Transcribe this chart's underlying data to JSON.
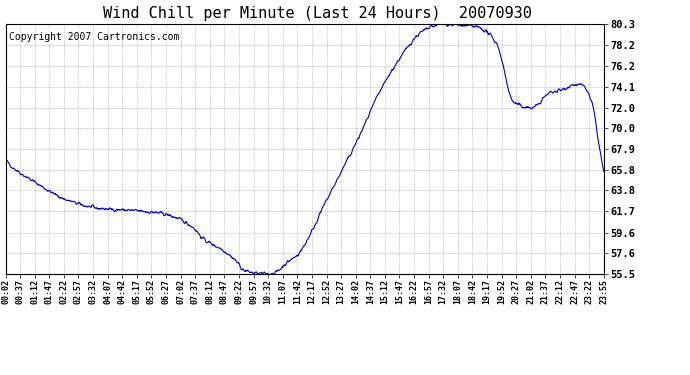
{
  "title": "Wind Chill per Minute (Last 24 Hours)  20070930",
  "copyright": "Copyright 2007 Cartronics.com",
  "line_color": "#0000CC",
  "bg_color": "#ffffff",
  "plot_bg_color": "#ffffff",
  "grid_color": "#aaaaaa",
  "yticks": [
    55.5,
    57.6,
    59.6,
    61.7,
    63.8,
    65.8,
    67.9,
    70.0,
    72.0,
    74.1,
    76.2,
    78.2,
    80.3
  ],
  "ylim": [
    55.5,
    80.3
  ],
  "xtick_labels": [
    "00:02",
    "00:37",
    "01:12",
    "01:47",
    "02:22",
    "02:57",
    "03:32",
    "04:07",
    "04:42",
    "05:17",
    "05:52",
    "06:27",
    "07:02",
    "07:37",
    "08:12",
    "08:47",
    "09:22",
    "09:57",
    "10:32",
    "11:07",
    "11:42",
    "12:17",
    "12:52",
    "13:27",
    "14:02",
    "14:37",
    "15:12",
    "15:47",
    "16:22",
    "16:57",
    "17:32",
    "18:07",
    "18:42",
    "19:17",
    "19:52",
    "20:27",
    "21:02",
    "21:37",
    "22:12",
    "22:47",
    "23:22",
    "23:55"
  ],
  "title_fontsize": 11,
  "copyright_fontsize": 7,
  "ctrl_times": [
    0.0,
    0.01,
    0.052,
    0.104,
    0.156,
    0.208,
    0.26,
    0.312,
    0.33,
    0.365,
    0.385,
    0.4,
    0.432,
    0.45,
    0.468,
    0.49,
    0.51,
    0.53,
    0.56,
    0.59,
    0.625,
    0.66,
    0.695,
    0.73,
    0.76,
    0.79,
    0.82,
    0.85,
    0.88,
    0.91,
    0.93,
    0.95,
    0.965,
    0.98,
    0.993,
    1.0
  ],
  "ctrl_vals": [
    66.8,
    66.2,
    64.5,
    62.8,
    62.0,
    61.8,
    61.5,
    60.2,
    59.0,
    57.8,
    56.8,
    55.8,
    55.5,
    55.6,
    56.5,
    57.5,
    59.5,
    62.0,
    65.5,
    69.0,
    73.5,
    77.0,
    79.5,
    80.3,
    80.2,
    80.0,
    78.5,
    72.5,
    72.0,
    73.5,
    73.8,
    74.3,
    74.2,
    72.5,
    68.0,
    65.5
  ]
}
